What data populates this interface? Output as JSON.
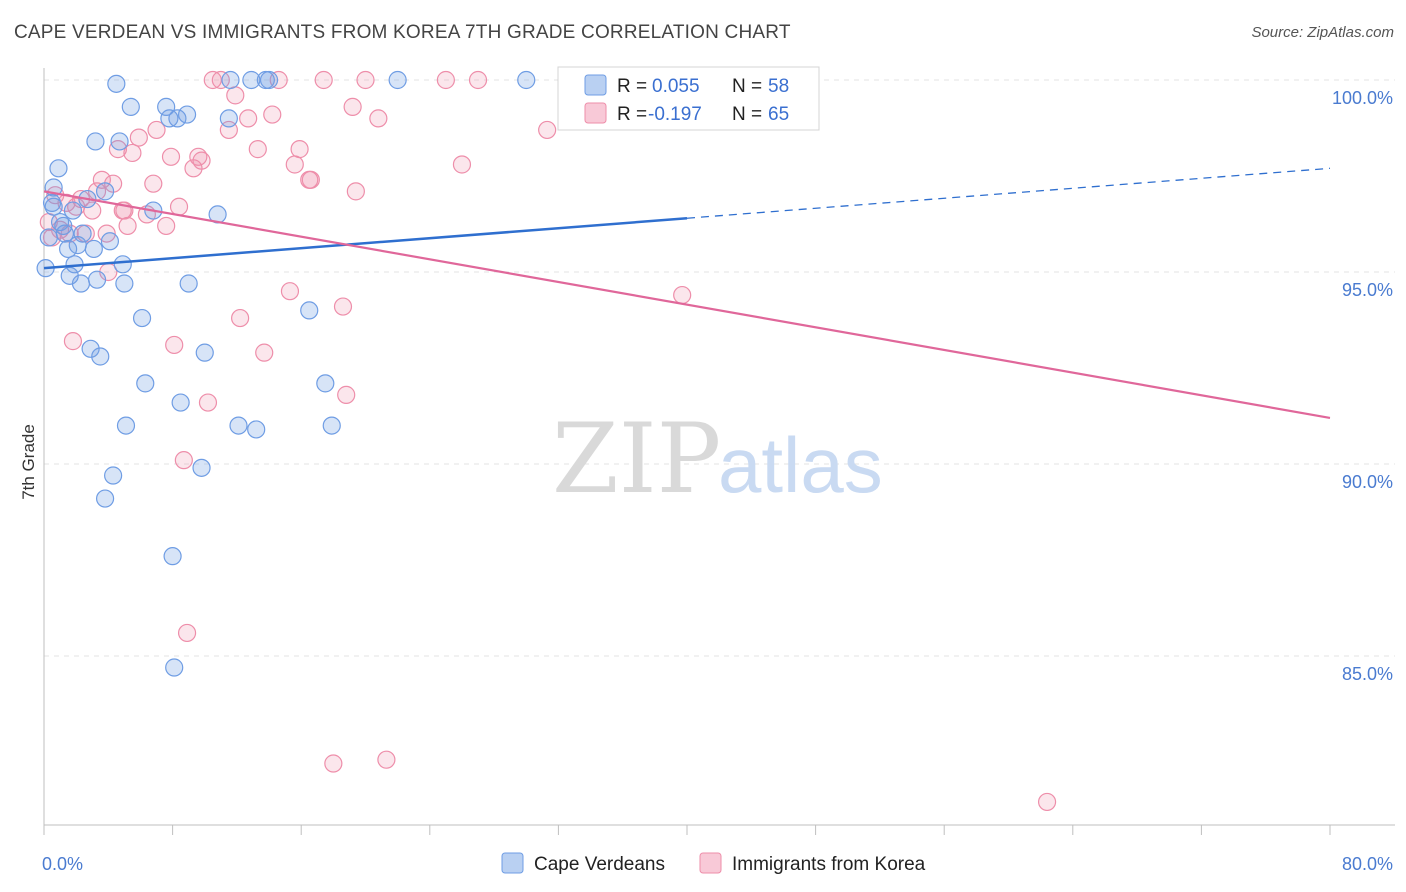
{
  "title": "CAPE VERDEAN VS IMMIGRANTS FROM KOREA 7TH GRADE CORRELATION CHART",
  "source": "Source: ZipAtlas.com",
  "watermark": {
    "zip": "ZIP",
    "atlas": "atlas"
  },
  "legend_box": {
    "rows": [
      {
        "r_label": "R =",
        "r_value": "0.055",
        "n_label": "N =",
        "n_value": "58"
      },
      {
        "r_label": "R =",
        "r_value": "-0.197",
        "n_label": "N =",
        "n_value": "65"
      }
    ]
  },
  "chart_data": {
    "type": "scatter",
    "title": "CAPE VERDEAN VS IMMIGRANTS FROM KOREA 7TH GRADE CORRELATION CHART",
    "xlabel": "",
    "ylabel": "7th Grade",
    "xlim": [
      0,
      80
    ],
    "ylim": [
      80,
      100.6
    ],
    "x_tick_labels": [
      {
        "value": 0,
        "label": "0.0%"
      },
      {
        "value": 80,
        "label": "80.0%"
      }
    ],
    "y_ticks": [
      {
        "value": 100,
        "label": "100.0%"
      },
      {
        "value": 95,
        "label": "95.0%"
      },
      {
        "value": 90,
        "label": "90.0%"
      },
      {
        "value": 85,
        "label": "85.0%"
      }
    ],
    "x_minor_ticks": [
      0,
      8,
      16,
      24,
      32,
      40,
      48,
      56,
      64,
      72,
      80
    ],
    "colors": {
      "cape": "#6f9de4",
      "korea": "#ee8eaa",
      "cape_line": "#2f6fcf",
      "korea_line": "#e0679a",
      "grid": "#e3e3e3"
    },
    "series": [
      {
        "name": "Cape Verdeans",
        "r": 0.055,
        "n": 58,
        "trend": {
          "x0": 0,
          "y0": 95.1,
          "x1": 40,
          "y1": 96.4,
          "dashed_to_x": 80,
          "dashed_to_y": 97.7
        },
        "points": [
          [
            0.1,
            95.1
          ],
          [
            0.3,
            95.9
          ],
          [
            0.5,
            96.8
          ],
          [
            0.6,
            97.2
          ],
          [
            0.9,
            97.7
          ],
          [
            1.2,
            96.2
          ],
          [
            1.3,
            96.0
          ],
          [
            1.5,
            95.6
          ],
          [
            1.6,
            94.9
          ],
          [
            1.8,
            96.6
          ],
          [
            1.9,
            95.2
          ],
          [
            2.1,
            95.7
          ],
          [
            2.3,
            94.7
          ],
          [
            2.4,
            96.0
          ],
          [
            2.7,
            96.9
          ],
          [
            2.9,
            93.0
          ],
          [
            3.1,
            95.6
          ],
          [
            3.2,
            98.4
          ],
          [
            3.3,
            94.8
          ],
          [
            3.5,
            92.8
          ],
          [
            3.8,
            97.1
          ],
          [
            4.1,
            95.8
          ],
          [
            4.3,
            89.7
          ],
          [
            4.5,
            99.9
          ],
          [
            4.7,
            98.4
          ],
          [
            4.9,
            95.2
          ],
          [
            5.0,
            94.7
          ],
          [
            5.1,
            91.0
          ],
          [
            5.4,
            99.3
          ],
          [
            6.1,
            93.8
          ],
          [
            6.3,
            92.1
          ],
          [
            6.8,
            96.6
          ],
          [
            7.6,
            99.3
          ],
          [
            7.8,
            99.0
          ],
          [
            8.0,
            87.6
          ],
          [
            8.3,
            99.0
          ],
          [
            8.5,
            91.6
          ],
          [
            8.9,
            99.1
          ],
          [
            9.0,
            94.7
          ],
          [
            9.8,
            89.9
          ],
          [
            10.0,
            92.9
          ],
          [
            10.8,
            96.5
          ],
          [
            11.5,
            99.0
          ],
          [
            11.6,
            100.0
          ],
          [
            12.1,
            91.0
          ],
          [
            12.9,
            100.0
          ],
          [
            13.2,
            90.9
          ],
          [
            13.8,
            100.0
          ],
          [
            16.5,
            94.0
          ],
          [
            17.5,
            92.1
          ],
          [
            17.9,
            91.0
          ],
          [
            22.0,
            100.0
          ],
          [
            30.0,
            100.0
          ],
          [
            3.8,
            89.1
          ],
          [
            8.1,
            84.7
          ],
          [
            14.0,
            100.0
          ],
          [
            0.6,
            96.7
          ],
          [
            1.0,
            96.3
          ]
        ]
      },
      {
        "name": "Immigrants from Korea",
        "r": -0.197,
        "n": 65,
        "trend": {
          "x0": 0,
          "y0": 97.1,
          "x1": 80,
          "y1": 91.2
        },
        "points": [
          [
            0.3,
            96.3
          ],
          [
            0.5,
            95.9
          ],
          [
            0.7,
            97.0
          ],
          [
            1.0,
            96.1
          ],
          [
            1.4,
            96.8
          ],
          [
            1.6,
            96.0
          ],
          [
            1.8,
            93.2
          ],
          [
            2.0,
            96.7
          ],
          [
            2.3,
            96.9
          ],
          [
            2.6,
            96.0
          ],
          [
            3.0,
            96.6
          ],
          [
            3.3,
            97.1
          ],
          [
            3.6,
            97.4
          ],
          [
            3.9,
            96.0
          ],
          [
            4.0,
            95.0
          ],
          [
            4.3,
            97.3
          ],
          [
            4.6,
            98.2
          ],
          [
            4.9,
            96.6
          ],
          [
            5.2,
            96.2
          ],
          [
            5.5,
            98.1
          ],
          [
            5.9,
            98.5
          ],
          [
            6.4,
            96.5
          ],
          [
            6.8,
            97.3
          ],
          [
            7.0,
            98.7
          ],
          [
            7.6,
            96.2
          ],
          [
            7.9,
            98.0
          ],
          [
            8.1,
            93.1
          ],
          [
            8.4,
            96.7
          ],
          [
            8.7,
            90.1
          ],
          [
            8.9,
            85.6
          ],
          [
            9.3,
            97.7
          ],
          [
            9.6,
            98.0
          ],
          [
            10.2,
            91.6
          ],
          [
            10.5,
            100.0
          ],
          [
            11.0,
            100.0
          ],
          [
            11.5,
            98.7
          ],
          [
            11.9,
            99.6
          ],
          [
            12.2,
            93.8
          ],
          [
            12.7,
            99.0
          ],
          [
            13.3,
            98.2
          ],
          [
            13.7,
            92.9
          ],
          [
            14.2,
            99.1
          ],
          [
            14.6,
            100.0
          ],
          [
            15.3,
            94.5
          ],
          [
            15.6,
            97.8
          ],
          [
            15.9,
            98.2
          ],
          [
            16.5,
            97.4
          ],
          [
            17.4,
            100.0
          ],
          [
            18.0,
            82.2
          ],
          [
            18.6,
            94.1
          ],
          [
            18.8,
            91.8
          ],
          [
            19.2,
            99.3
          ],
          [
            19.4,
            97.1
          ],
          [
            20.0,
            100.0
          ],
          [
            20.8,
            99.0
          ],
          [
            21.3,
            82.3
          ],
          [
            25.0,
            100.0
          ],
          [
            26.0,
            97.8
          ],
          [
            27.0,
            100.0
          ],
          [
            31.3,
            98.7
          ],
          [
            39.7,
            94.4
          ],
          [
            62.4,
            81.2
          ],
          [
            9.8,
            97.9
          ],
          [
            16.6,
            97.4
          ],
          [
            5.0,
            96.6
          ]
        ]
      }
    ]
  }
}
